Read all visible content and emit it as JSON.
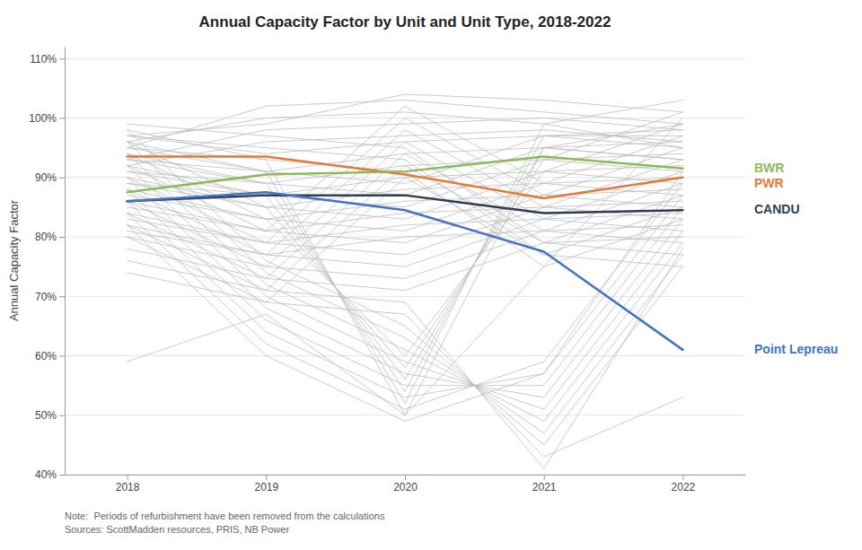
{
  "chart_data": {
    "type": "line",
    "title": "Annual Capacity Factor by Unit and Unit Type, 2018-2022",
    "y_label": "Annual Capacity Factor",
    "annotations": [
      "Note:  Periods of refurbishment have been removed from the calculations",
      "Sources: ScottMadden resources, PRIS, NB Power"
    ],
    "x": [
      2018,
      2019,
      2020,
      2021,
      2022
    ],
    "xlim": [
      2017.55,
      2022.45
    ],
    "xticks": [
      2018,
      2019,
      2020,
      2021,
      2022
    ],
    "ylim": [
      40,
      112
    ],
    "yticks": [
      {
        "value": 40,
        "label": "40%"
      },
      {
        "value": 50,
        "label": "50%"
      },
      {
        "value": 60,
        "label": "60%"
      },
      {
        "value": 70,
        "label": "70%"
      },
      {
        "value": 80,
        "label": "80%"
      },
      {
        "value": 90,
        "label": "90%"
      },
      {
        "value": 100,
        "label": "100%"
      },
      {
        "value": 110,
        "label": "110%"
      }
    ],
    "grid": true,
    "series": [
      {
        "color": "#BBBBBB",
        "values": [
          97,
          99,
          104,
          103,
          101
        ]
      },
      {
        "color": "#BBBBBB",
        "values": [
          95,
          102,
          103,
          101,
          99
        ]
      },
      {
        "color": "#BBBBBB",
        "values": [
          96,
          100,
          101,
          99,
          103
        ]
      },
      {
        "color": "#BBBBBB",
        "values": [
          93,
          98,
          99,
          100,
          98
        ]
      },
      {
        "color": "#BBBBBB",
        "values": [
          92,
          96,
          97,
          98,
          96
        ]
      },
      {
        "color": "#BBBBBB",
        "values": [
          97,
          94,
          96,
          97,
          95
        ]
      },
      {
        "color": "#BBBBBB",
        "values": [
          95,
          91,
          94,
          95,
          93
        ]
      },
      {
        "color": "#BBBBBB",
        "values": [
          93,
          89,
          92,
          93,
          91
        ]
      },
      {
        "color": "#BBBBBB",
        "values": [
          91,
          87,
          90,
          91,
          89
        ]
      },
      {
        "color": "#BBBBBB",
        "values": [
          89,
          85,
          88,
          89,
          87
        ]
      },
      {
        "color": "#BBBBBB",
        "values": [
          87,
          83,
          86,
          87,
          85
        ]
      },
      {
        "color": "#BBBBBB",
        "values": [
          85,
          81,
          84,
          85,
          83
        ]
      },
      {
        "color": "#BBBBBB",
        "values": [
          83,
          79,
          82,
          83,
          81
        ]
      },
      {
        "color": "#BBBBBB",
        "values": [
          81,
          77,
          80,
          81,
          79
        ]
      },
      {
        "color": "#BBBBBB",
        "values": [
          99,
          97,
          95,
          79,
          77
        ]
      },
      {
        "color": "#BBBBBB",
        "values": [
          97,
          95,
          93,
          77,
          75
        ]
      },
      {
        "color": "#BBBBBB",
        "values": [
          95,
          93,
          91,
          75,
          100
        ]
      },
      {
        "color": "#BBBBBB",
        "values": [
          93,
          91,
          89,
          97,
          98
        ]
      },
      {
        "color": "#BBBBBB",
        "values": [
          91,
          89,
          87,
          95,
          96
        ]
      },
      {
        "color": "#BBBBBB",
        "values": [
          89,
          87,
          85,
          93,
          94
        ]
      },
      {
        "color": "#BBBBBB",
        "values": [
          96,
          85,
          83,
          91,
          92
        ]
      },
      {
        "color": "#BBBBBB",
        "values": [
          94,
          83,
          81,
          89,
          90
        ]
      },
      {
        "color": "#BBBBBB",
        "values": [
          92,
          81,
          79,
          87,
          88
        ]
      },
      {
        "color": "#BBBBBB",
        "values": [
          90,
          79,
          77,
          85,
          86
        ]
      },
      {
        "color": "#BBBBBB",
        "values": [
          88,
          77,
          75,
          83,
          84
        ]
      },
      {
        "color": "#BBBBBB",
        "values": [
          86,
          75,
          73,
          81,
          82
        ]
      },
      {
        "color": "#BBBBBB",
        "values": [
          84,
          73,
          71,
          79,
          80
        ]
      },
      {
        "color": "#BBBBBB",
        "values": [
          82,
          71,
          69,
          41,
          78
        ]
      },
      {
        "color": "#BBBBBB",
        "values": [
          80,
          69,
          67,
          43,
          53
        ]
      },
      {
        "color": "#BBBBBB",
        "values": [
          98,
          76,
          65,
          45,
          75
        ]
      },
      {
        "color": "#BBBBBB",
        "values": [
          96,
          74,
          63,
          47,
          77
        ]
      },
      {
        "color": "#BBBBBB",
        "values": [
          94,
          72,
          61,
          49,
          79
        ]
      },
      {
        "color": "#BBBBBB",
        "values": [
          92,
          70,
          59,
          51,
          81
        ]
      },
      {
        "color": "#BBBBBB",
        "values": [
          90,
          68,
          57,
          53,
          83
        ]
      },
      {
        "color": "#BBBBBB",
        "values": [
          88,
          66,
          55,
          55,
          85
        ]
      },
      {
        "color": "#BBBBBB",
        "values": [
          86,
          64,
          53,
          57,
          87
        ]
      },
      {
        "color": "#BBBBBB",
        "values": [
          84,
          62,
          51,
          59,
          89
        ]
      },
      {
        "color": "#BBBBBB",
        "values": [
          82,
          60,
          49,
          57,
          91
        ]
      },
      {
        "color": "#BBBBBB",
        "values": [
          98,
          93,
          50,
          95,
          93
        ]
      },
      {
        "color": "#BBBBBB",
        "values": [
          96,
          91,
          52,
          99,
          95
        ]
      },
      {
        "color": "#BBBBBB",
        "values": [
          94,
          89,
          54,
          97,
          97
        ]
      },
      {
        "color": "#BBBBBB",
        "values": [
          92,
          87,
          56,
          95,
          99
        ]
      },
      {
        "color": "#BBBBBB",
        "values": [
          90,
          85,
          58,
          93,
          101
        ]
      },
      {
        "color": "#BBBBBB",
        "values": [
          88,
          83,
          60,
          91,
          99
        ]
      },
      {
        "color": "#BBBBBB",
        "values": [
          86,
          81,
          102,
          89,
          97
        ]
      },
      {
        "color": "#BBBBBB",
        "values": [
          84,
          79,
          100,
          87,
          95
        ]
      },
      {
        "color": "#BBBBBB",
        "values": [
          82,
          77,
          98,
          85,
          93
        ]
      },
      {
        "color": "#BBBBBB",
        "values": [
          80,
          75,
          96,
          83,
          91
        ]
      },
      {
        "color": "#BBBBBB",
        "values": [
          78,
          73,
          94,
          81,
          89
        ]
      },
      {
        "color": "#BBBBBB",
        "values": [
          76,
          71,
          92,
          79,
          87
        ]
      },
      {
        "color": "#BBBBBB",
        "values": [
          74,
          69,
          90,
          77,
          85
        ]
      },
      {
        "color": "#BBBBBB",
        "values": [
          59,
          67,
          50,
          75,
          83
        ]
      },
      {
        "name": "PWR",
        "color": "#E07B39",
        "values": [
          93.5,
          93.5,
          90.5,
          86.5,
          90.0
        ]
      },
      {
        "name": "BWR",
        "color": "#8DB95B",
        "values": [
          87.5,
          90.5,
          91.0,
          93.5,
          91.5
        ]
      },
      {
        "name": "CANDU",
        "color": "#2C3E50",
        "values": [
          86.0,
          87.0,
          87.0,
          84.0,
          84.5
        ]
      },
      {
        "name": "Point Lepreau",
        "color": "#4472C4",
        "values": [
          86.0,
          87.5,
          84.5,
          77.5,
          61.0
        ]
      }
    ]
  }
}
